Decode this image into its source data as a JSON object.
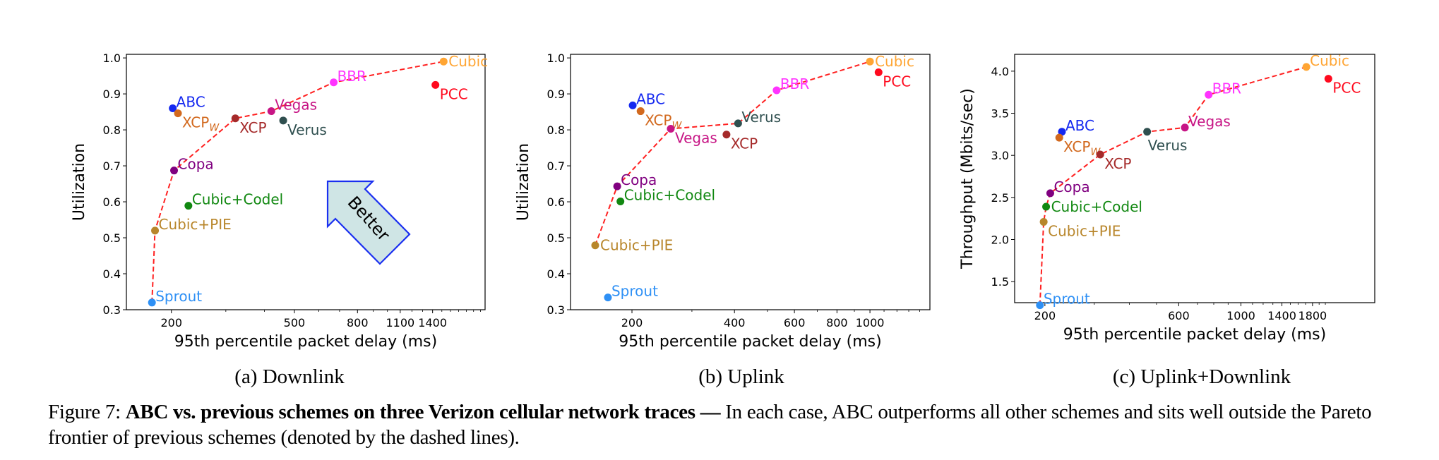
{
  "figure": {
    "caption_label": "Figure 7:",
    "caption_bold": "ABC vs. previous schemes on three Verizon cellular network traces —",
    "caption_rest": " In each case, ABC outperforms all other schemes and sits well outside the Pareto frontier of previous schemes (denoted by the dashed lines).",
    "subcaptions": [
      "(a) Downlink",
      "(b) Uplink",
      "(c) Uplink+Downlink"
    ],
    "annotation": "Better"
  },
  "colors": {
    "ABC": "#1428f0",
    "XCPw": "#d2691e",
    "XCP": "#a52a2a",
    "Vegas": "#c71585",
    "Verus": "#2f4f4f",
    "BBR": "#ff33ff",
    "Cubic": "#ffa533",
    "PCC": "#ff0a1e",
    "Copa": "#800080",
    "Cubic+Codel": "#118811",
    "Cubic+PIE": "#b8862b",
    "Sprout": "#2e90f5",
    "frontier": "#ff2020",
    "arrow_fill": "#cfe5e5",
    "arrow_stroke": "#1a2ff0"
  },
  "chart_data": [
    {
      "type": "scatter",
      "title": "(a) Downlink",
      "xlabel": "95th percentile packet delay (ms)",
      "ylabel": "Utilization",
      "xscale": "log",
      "xlim": [
        143,
        2070
      ],
      "ylim": [
        0.3,
        1.01
      ],
      "xticks": [
        200,
        500,
        800,
        1100,
        1400
      ],
      "xminor": [
        300,
        400,
        600,
        700,
        900,
        1000,
        1200,
        1300,
        1500,
        1600,
        1700,
        1800,
        1900,
        2000
      ],
      "yticks": [
        "0.3",
        "0.4",
        "0.5",
        "0.6",
        "0.7",
        "0.8",
        "0.9",
        "1.0"
      ],
      "grid": false,
      "points": [
        {
          "name": "Sprout",
          "label": "Sprout",
          "x": 173,
          "y": 0.32,
          "pos": "ur"
        },
        {
          "name": "Cubic+PIE",
          "label": "Cubic+PIE",
          "x": 177,
          "y": 0.52,
          "pos": "ur"
        },
        {
          "name": "Copa",
          "label": "Copa",
          "x": 204,
          "y": 0.687,
          "pos": "ur"
        },
        {
          "name": "Cubic+Codel",
          "label": "Cubic+Codel",
          "x": 227,
          "y": 0.589,
          "pos": "ur"
        },
        {
          "name": "ABC",
          "label": "ABC",
          "x": 202,
          "y": 0.86,
          "pos": "ur"
        },
        {
          "name": "XCPw",
          "label": "XCP",
          "sub": "W",
          "x": 210,
          "y": 0.846,
          "pos": "lr"
        },
        {
          "name": "XCP",
          "label": "XCP",
          "x": 322,
          "y": 0.832,
          "pos": "lr"
        },
        {
          "name": "Vegas",
          "label": "Vegas",
          "x": 421,
          "y": 0.852,
          "pos": "ur"
        },
        {
          "name": "Verus",
          "label": "Verus",
          "x": 460,
          "y": 0.826,
          "pos": "lr"
        },
        {
          "name": "BBR",
          "label": "BBR",
          "x": 670,
          "y": 0.932,
          "pos": "ur"
        },
        {
          "name": "PCC",
          "label": "PCC",
          "x": 1430,
          "y": 0.925,
          "pos": "lr"
        },
        {
          "name": "Cubic",
          "label": "Cubic",
          "x": 1520,
          "y": 0.99,
          "pos": "r"
        }
      ],
      "frontier": [
        "Sprout",
        "Cubic+PIE",
        "Copa",
        "XCP",
        "Vegas",
        "BBR",
        "Cubic"
      ],
      "annotation_arrow": true
    },
    {
      "type": "scatter",
      "title": "(b) Uplink",
      "xlabel": "95th percentile packet delay (ms)",
      "ylabel": "Utilization",
      "xscale": "log",
      "xlim": [
        132,
        1500
      ],
      "ylim": [
        0.3,
        1.01
      ],
      "xticks": [
        200,
        400,
        600,
        800,
        1000
      ],
      "xminor": [
        300,
        500,
        700,
        900,
        1100,
        1200,
        1300,
        1400
      ],
      "yticks": [
        "0.3",
        "0.4",
        "0.5",
        "0.6",
        "0.7",
        "0.8",
        "0.9",
        "1.0"
      ],
      "grid": false,
      "points": [
        {
          "name": "Cubic+PIE",
          "label": "Cubic+PIE",
          "x": 156,
          "y": 0.479,
          "pos": "r"
        },
        {
          "name": "Sprout",
          "label": "Sprout",
          "x": 170,
          "y": 0.334,
          "pos": "ur"
        },
        {
          "name": "Copa",
          "label": "Copa",
          "x": 181,
          "y": 0.643,
          "pos": "ur"
        },
        {
          "name": "Cubic+Codel",
          "label": "Cubic+Codel",
          "x": 185,
          "y": 0.601,
          "pos": "ur"
        },
        {
          "name": "ABC",
          "label": "ABC",
          "x": 201,
          "y": 0.868,
          "pos": "ur"
        },
        {
          "name": "XCPw",
          "label": "XCP",
          "sub": "W",
          "x": 212,
          "y": 0.852,
          "pos": "lr"
        },
        {
          "name": "Vegas",
          "label": "Vegas",
          "x": 260,
          "y": 0.803,
          "pos": "lr"
        },
        {
          "name": "XCP",
          "label": "XCP",
          "x": 379,
          "y": 0.787,
          "pos": "lr"
        },
        {
          "name": "Verus",
          "label": "Verus",
          "x": 410,
          "y": 0.818,
          "pos": "ur"
        },
        {
          "name": "BBR",
          "label": "BBR",
          "x": 532,
          "y": 0.91,
          "pos": "ur"
        },
        {
          "name": "Cubic",
          "label": "Cubic",
          "x": 1000,
          "y": 0.99,
          "pos": "r"
        },
        {
          "name": "PCC",
          "label": "PCC",
          "x": 1060,
          "y": 0.96,
          "pos": "lr"
        }
      ],
      "frontier": [
        "Cubic+PIE",
        "Copa",
        "Vegas",
        "Verus",
        "BBR",
        "Cubic"
      ],
      "annotation_arrow": false
    },
    {
      "type": "scatter",
      "title": "(c) Uplink+Downlink",
      "xlabel": "95th percentile packet delay (ms)",
      "ylabel": "Throughput (Mbits/sec)",
      "xscale": "log",
      "xlim": [
        156,
        3000
      ],
      "ylim": [
        1.25,
        4.2
      ],
      "xticks": [
        200,
        600,
        1000,
        1400,
        1800
      ],
      "xminor": [
        300,
        400,
        500,
        700,
        800,
        900,
        1100,
        1200,
        1300,
        1500,
        1600,
        1700,
        1900,
        2000,
        3000
      ],
      "yticks": [
        "1.5",
        "2.0",
        "2.5",
        "3.0",
        "3.5",
        "4.0"
      ],
      "grid": false,
      "points": [
        {
          "name": "Sprout",
          "label": "Sprout",
          "x": 192,
          "y": 1.22,
          "pos": "ur"
        },
        {
          "name": "Cubic+PIE",
          "label": "Cubic+PIE",
          "x": 198,
          "y": 2.21,
          "pos": "lr"
        },
        {
          "name": "Cubic+Codel",
          "label": "Cubic+Codel",
          "x": 202,
          "y": 2.39,
          "pos": "r"
        },
        {
          "name": "Copa",
          "label": "Copa",
          "x": 209,
          "y": 2.55,
          "pos": "ur"
        },
        {
          "name": "ABC",
          "label": "ABC",
          "x": 230,
          "y": 3.28,
          "pos": "ur"
        },
        {
          "name": "XCPw",
          "label": "XCP",
          "sub": "W",
          "x": 225,
          "y": 3.21,
          "pos": "lr"
        },
        {
          "name": "XCP",
          "label": "XCP",
          "x": 315,
          "y": 3.01,
          "pos": "lr"
        },
        {
          "name": "Verus",
          "label": "Verus",
          "x": 463,
          "y": 3.28,
          "pos": "below"
        },
        {
          "name": "Vegas",
          "label": "Vegas",
          "x": 631,
          "y": 3.33,
          "pos": "ur"
        },
        {
          "name": "BBR",
          "label": "BBR",
          "x": 767,
          "y": 3.72,
          "pos": "ur"
        },
        {
          "name": "Cubic",
          "label": "Cubic",
          "x": 1711,
          "y": 4.05,
          "pos": "ur"
        },
        {
          "name": "PCC",
          "label": "PCC",
          "x": 2050,
          "y": 3.91,
          "pos": "lr"
        }
      ],
      "frontier": [
        "Sprout",
        "Cubic+PIE",
        "Cubic+Codel",
        "Copa",
        "XCP",
        "Verus",
        "Vegas",
        "BBR",
        "Cubic"
      ],
      "annotation_arrow": false
    }
  ]
}
